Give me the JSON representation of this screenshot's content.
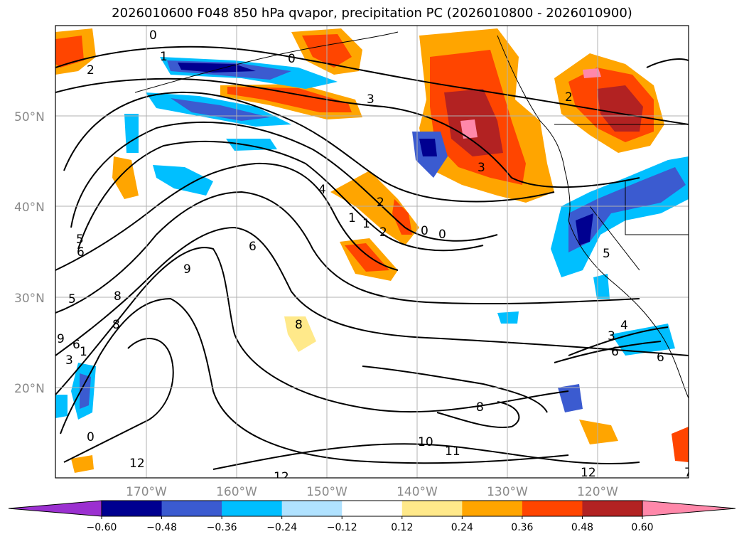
{
  "title": "2026010600 F048 850 hPa qvapor, precipitation PC (2026010800 - 2026010900)",
  "lat_labels": [
    "50°N",
    "40°N",
    "30°N",
    "20°N"
  ],
  "lon_labels": [
    "170°W",
    "160°W",
    "150°W",
    "140°W",
    "130°W",
    "120°W"
  ],
  "colorbar": {
    "colors": [
      "#9b30d0",
      "#000090",
      "#3b5bd0",
      "#00bfff",
      "#b0e2ff",
      "#ffffff",
      "#ffe98a",
      "#ffa500",
      "#ff4500",
      "#b22222",
      "#ff88aa"
    ],
    "labels": [
      "−0.60",
      "−0.48",
      "−0.36",
      "−0.24",
      "−0.12",
      "0.12",
      "0.24",
      "0.36",
      "0.48",
      "0.60"
    ]
  },
  "contour_labels": [
    "0",
    "0",
    "1",
    "2",
    "3",
    "2",
    "3",
    "4",
    "2",
    "1",
    "1",
    "2",
    "0",
    "0",
    "5",
    "6",
    "6",
    "9",
    "8",
    "8",
    "8",
    "5",
    "9",
    "6",
    "3",
    "5",
    "3",
    "4",
    "6",
    "6",
    "1",
    "0",
    "12",
    "12",
    "10",
    "11",
    "8",
    "12",
    "7"
  ]
}
